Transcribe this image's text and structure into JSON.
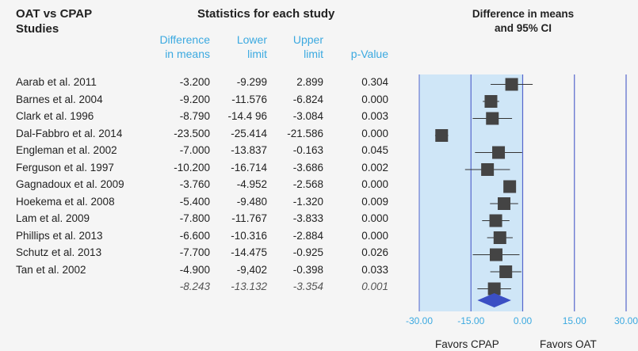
{
  "header": {
    "studies_title_1": "OAT vs CPAP",
    "studies_title_2": "Studies",
    "stats_title": "Statistics for each study",
    "plot_title_1": "Difference in means",
    "plot_title_2": "and 95% CI",
    "col_diff_1": "Difference",
    "col_diff_2": "in means",
    "col_lower_1": "Lower",
    "col_lower_2": "limit",
    "col_upper_1": "Upper",
    "col_upper_2": "limit",
    "col_p": "p-Value"
  },
  "rows": [
    {
      "study": "Aarab et al. 2011",
      "diff": "-3.200",
      "lower": "-9.299",
      "upper": "2.899",
      "p": "0.304"
    },
    {
      "study": "Barnes et al. 2004",
      "diff": "-9.200",
      "lower": "-11.576",
      "upper": "-6.824",
      "p": "0.000"
    },
    {
      "study": "Clark et al. 1996",
      "diff": "-8.790",
      "lower": "-14.4 96",
      "upper": "-3.084",
      "p": "0.003"
    },
    {
      "study": "Dal-Fabbro et al. 2014",
      "diff": "-23.500",
      "lower": "-25.414",
      "upper": "-21.586",
      "p": "0.000"
    },
    {
      "study": "Engleman et al. 2002",
      "diff": "-7.000",
      "lower": "-13.837",
      "upper": "-0.163",
      "p": "0.045"
    },
    {
      "study": "Ferguson et al. 1997",
      "diff": "-10.200",
      "lower": "-16.714",
      "upper": "-3.686",
      "p": "0.002"
    },
    {
      "study": "Gagnadoux et al.  2009",
      "diff": "-3.760",
      "lower": "-4.952",
      "upper": "-2.568",
      "p": "0.000"
    },
    {
      "study": "Hoekema et al. 2008",
      "diff": "-5.400",
      "lower": "-9.480",
      "upper": "-1.320",
      "p": "0.009"
    },
    {
      "study": "Lam et al. 2009",
      "diff": "-7.800",
      "lower": "-11.767",
      "upper": "-3.833",
      "p": "0.000"
    },
    {
      "study": "Phillips et al. 2013",
      "diff": "-6.600",
      "lower": "-10.316",
      "upper": "-2.884",
      "p": "0.000"
    },
    {
      "study": "Schutz et al. 2013",
      "diff": "-7.700",
      "lower": "-14.475",
      "upper": "-0.925",
      "p": "0.026"
    },
    {
      "study": "Tan et al. 2002",
      "diff": "-4.900",
      "lower": "-9,402",
      "upper": "-0.398",
      "p": "0.033"
    }
  ],
  "summary": {
    "diff": "-8.243",
    "lower": "-13.132",
    "upper": "-3.354",
    "p": "0.001"
  },
  "footer": {
    "favors_left": "Favors CPAP",
    "favors_right": "Favors OAT"
  },
  "colors": {
    "ci_band": "#cfe6f7",
    "marker": "#444444",
    "diamond": "#3b4fc4",
    "gridline": "#5566cc",
    "axis_text": "#3ba9e0"
  },
  "chart_data": {
    "type": "scatter",
    "subtype": "forest-plot",
    "title": "Difference in means and 95% CI",
    "xlim": [
      -30,
      30
    ],
    "x_ticks": [
      "-30.00",
      "-15.00",
      "0.00",
      "15.00",
      "30.00"
    ],
    "x_tick_values": [
      -30,
      -15,
      0,
      15,
      30
    ],
    "points": [
      {
        "label": "Aarab et al. 2011",
        "x": -3.2,
        "lo": -9.299,
        "hi": 2.899
      },
      {
        "label": "Barnes et al. 2004",
        "x": -9.2,
        "lo": -11.576,
        "hi": -6.824
      },
      {
        "label": "Clark et al. 1996",
        "x": -8.79,
        "lo": -14.496,
        "hi": -3.084
      },
      {
        "label": "Dal-Fabbro et al. 2014",
        "x": -23.5,
        "lo": -25.414,
        "hi": -21.586
      },
      {
        "label": "Engleman et al. 2002",
        "x": -7.0,
        "lo": -13.837,
        "hi": -0.163
      },
      {
        "label": "Ferguson et al. 1997",
        "x": -10.2,
        "lo": -16.714,
        "hi": -3.686
      },
      {
        "label": "Gagnadoux et al. 2009",
        "x": -3.76,
        "lo": -4.952,
        "hi": -2.568
      },
      {
        "label": "Hoekema et al. 2008",
        "x": -5.4,
        "lo": -9.48,
        "hi": -1.32
      },
      {
        "label": "Lam et al. 2009",
        "x": -7.8,
        "lo": -11.767,
        "hi": -3.833
      },
      {
        "label": "Phillips et al. 2013",
        "x": -6.6,
        "lo": -10.316,
        "hi": -2.884
      },
      {
        "label": "Schutz et al. 2013",
        "x": -7.7,
        "lo": -14.475,
        "hi": -0.925
      },
      {
        "label": "Tan et al. 2002",
        "x": -4.9,
        "lo": -9.402,
        "hi": -0.398
      }
    ],
    "pooled": {
      "x": -8.243,
      "lo": -13.132,
      "hi": -3.354
    },
    "ci_band": [
      -30,
      0
    ],
    "reference_lines": [
      -15,
      0,
      15,
      30
    ]
  }
}
